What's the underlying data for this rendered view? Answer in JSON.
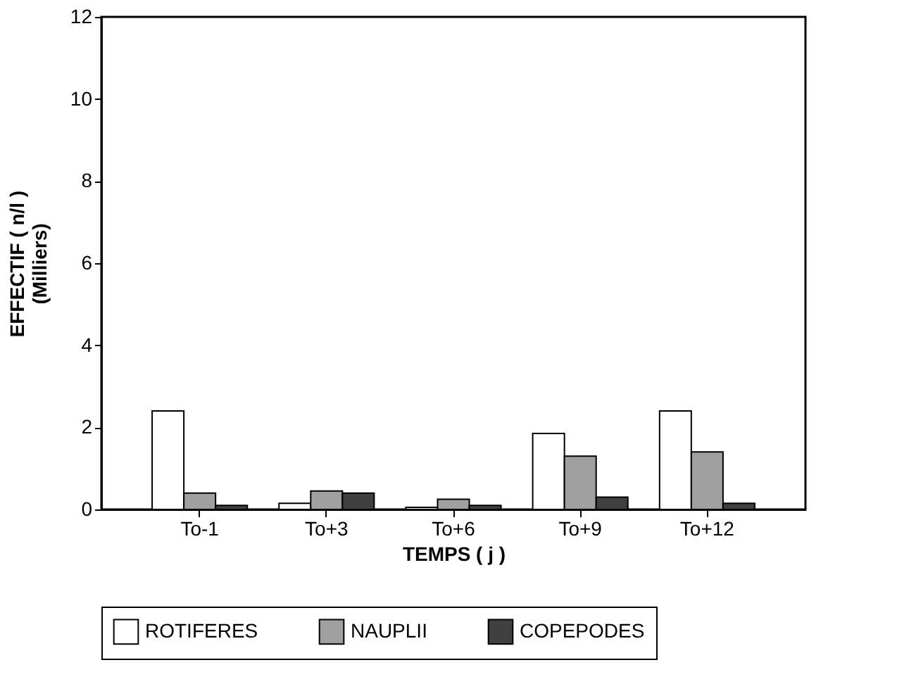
{
  "chart_data": {
    "type": "bar",
    "xlabel": "TEMPS ( j )",
    "ylabel": [
      "EFFECTIF ( n/l )",
      "(Milliers)"
    ],
    "categories": [
      "To-1",
      "To+3",
      "To+6",
      "To+9",
      "To+12"
    ],
    "series": [
      {
        "name": "ROTIFERES",
        "color": "#ffffff",
        "values": [
          2.4,
          0.15,
          0.05,
          1.85,
          2.4
        ]
      },
      {
        "name": "NAUPLII",
        "color": "#a0a0a0",
        "values": [
          0.4,
          0.45,
          0.25,
          1.3,
          1.4
        ]
      },
      {
        "name": "COPEPODES",
        "color": "#404040",
        "values": [
          0.1,
          0.4,
          0.1,
          0.3,
          0.15
        ]
      }
    ],
    "ylim": [
      0,
      12
    ],
    "yticks": [
      0,
      2,
      4,
      6,
      8,
      10,
      12
    ],
    "grid": false,
    "legend": "bottom"
  }
}
